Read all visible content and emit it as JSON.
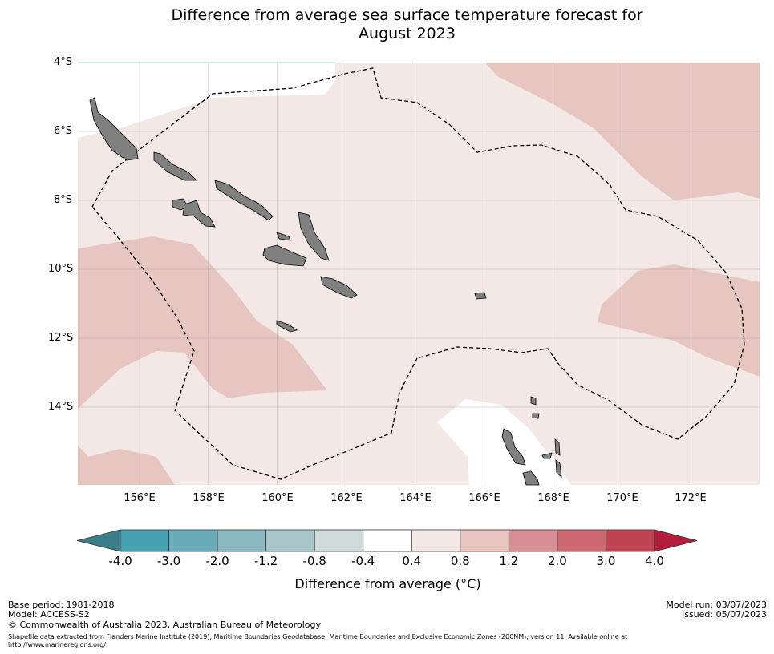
{
  "title_line1": "Difference from average sea surface temperature forecast for",
  "title_line2": "August 2023",
  "map": {
    "lat_ticks": [
      "4°S",
      "6°S",
      "8°S",
      "10°S",
      "12°S",
      "14°S"
    ],
    "lon_ticks": [
      "156°E",
      "158°E",
      "160°E",
      "162°E",
      "164°E",
      "166°E",
      "168°E",
      "170°E",
      "172°E"
    ],
    "colors": {
      "band_0_4_0_8": "#f4e8e6",
      "band_0_8_1_2": "#e7c6c1",
      "band_neutral": "#ffffff",
      "land": "#808080"
    }
  },
  "colorbar": {
    "ticks": [
      "-4.0",
      "-3.0",
      "-2.0",
      "-1.2",
      "-0.8",
      "-0.4",
      "0.4",
      "0.8",
      "1.2",
      "2.0",
      "3.0",
      "4.0"
    ],
    "colors": [
      "#3b7d89",
      "#47a0b0",
      "#69abb9",
      "#8bb9c1",
      "#a9c7cb",
      "#cfdadb",
      "#ffffff",
      "#f4e8e6",
      "#e7c6c1",
      "#d78e95",
      "#cb6872",
      "#c04352",
      "#b11d3a"
    ],
    "label": "Difference from average (°C)"
  },
  "footer": {
    "base_period": "Base period: 1981-2018",
    "model": "Model: ACCESS-S2",
    "model_run": "Model run: 03/07/2023",
    "issued": "Issued: 05/07/2023",
    "copyright": "© Commonwealth of Australia 2023, Australian Bureau of Meteorology",
    "shapefile_line1": "Shapefile data extracted from Flanders Marine Institute (2019), Maritime Boundaries Geodatabase: Maritime Boundaries and Exclusive Economic Zones (200NM), version 11. Available online at",
    "shapefile_line2": "http://www.marineregions.org/."
  }
}
